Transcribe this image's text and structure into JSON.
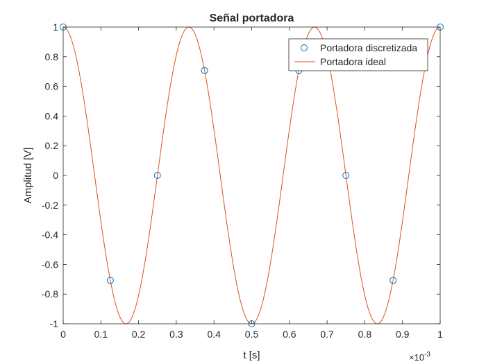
{
  "chart_data": {
    "type": "line",
    "title": "Señal portadora",
    "xlabel": "t [s]",
    "ylabel": "Amplitud [V]",
    "x_exponent_label": "×10",
    "x_exponent_power": "-3",
    "xlim": [
      0,
      1
    ],
    "ylim": [
      -1,
      1
    ],
    "x_ticks": [
      0,
      0.1,
      0.2,
      0.3,
      0.4,
      0.5,
      0.6,
      0.7,
      0.8,
      0.9,
      1
    ],
    "x_tick_labels": [
      "0",
      "0.1",
      "0.2",
      "0.3",
      "0.4",
      "0.5",
      "0.6",
      "0.7",
      "0.8",
      "0.9",
      "1"
    ],
    "y_ticks": [
      -1,
      -0.8,
      -0.6,
      -0.4,
      -0.2,
      0,
      0.2,
      0.4,
      0.6,
      0.8,
      1
    ],
    "y_tick_labels": [
      "-1",
      "-0.8",
      "-0.6",
      "-0.4",
      "-0.2",
      "0",
      "0.2",
      "0.4",
      "0.6",
      "0.8",
      "1"
    ],
    "grid": false,
    "legend_position": "top-right",
    "series": [
      {
        "name": "Portadora discretizada",
        "kind": "markers",
        "marker": "circle",
        "color": "#0072BD",
        "x": [
          0,
          0.125,
          0.25,
          0.375,
          0.5,
          0.625,
          0.75,
          0.875,
          1
        ],
        "y": [
          1,
          -0.7071,
          0,
          0.7071,
          -1,
          0.7071,
          0,
          -0.7071,
          1
        ]
      },
      {
        "name": "Portadora ideal",
        "kind": "line",
        "color": "#D95319",
        "function": "cos",
        "frequency_hz": 3000,
        "amplitude": 1
      }
    ]
  }
}
